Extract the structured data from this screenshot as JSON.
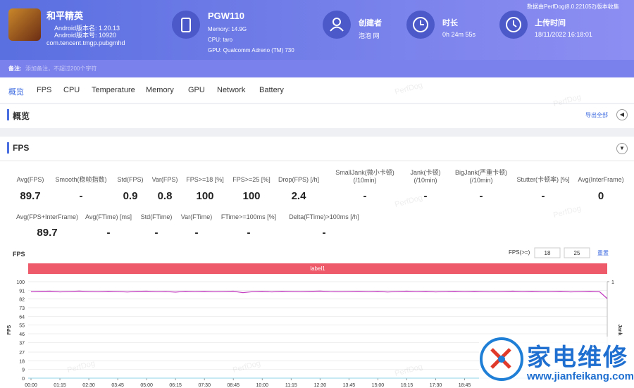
{
  "header": {
    "app_name": "和平精英",
    "android_version": "Android版本名: 1.20.13",
    "android_code": "Android版本号: 10920",
    "package": "com.tencent.tmgp.pubgmhd",
    "device": "PGW110",
    "memory": "Memory: 14.9G",
    "cpu": "CPU: taro",
    "gpu": "GPU: Qualcomm Adreno (TM) 730",
    "creator_label": "创建者",
    "creator": "泡泡 网",
    "duration_label": "时长",
    "duration": "0h 24m 55s",
    "upload_label": "上传时间",
    "upload_time": "18/11/2022 16:18:01",
    "source": "数据由PerfDog(8.0.221052)版本收集"
  },
  "note": {
    "label": "备注:",
    "placeholder": "添加备注，不超过200个字符"
  },
  "tabs": [
    "概览",
    "FPS",
    "CPU",
    "Temperature",
    "Memory",
    "GPU",
    "Network",
    "Battery"
  ],
  "overview": {
    "title": "概览",
    "export": "导出全部"
  },
  "fps_section": {
    "title": "FPS",
    "stats_row1": [
      {
        "label": "Avg(FPS)",
        "value": 89.7
      },
      {
        "label": "Smooth(稳帧指数)",
        "value": "-"
      },
      {
        "label": "Std(FPS)",
        "value": 0.9
      },
      {
        "label": "Var(FPS)",
        "value": 0.8
      },
      {
        "label": "FPS>=18 [%]",
        "value": 100
      },
      {
        "label": "FPS>=25 [%]",
        "value": 100
      },
      {
        "label": "Drop(FPS) [/h]",
        "value": 2.4
      },
      {
        "label": "SmallJank(微小卡顿)",
        "label2": "(/10min)",
        "value": "-"
      },
      {
        "label": "Jank(卡顿)",
        "label2": "(/10min)",
        "value": "-"
      },
      {
        "label": "BigJank(严重卡顿)",
        "label2": "(/10min)",
        "value": "-"
      },
      {
        "label": "Stutter(卡顿率) [%]",
        "value": "-"
      },
      {
        "label": "Avg(InterFrame)",
        "value": 0
      }
    ],
    "stats_row2": [
      {
        "label": "Avg(FPS+InterFrame)",
        "value": 89.7
      },
      {
        "label": "Avg(FTime) [ms]",
        "value": "-"
      },
      {
        "label": "Std(FTime)",
        "value": "-"
      },
      {
        "label": "Var(FTime)",
        "value": "-"
      },
      {
        "label": "FTime>=100ms [%]",
        "value": "-"
      },
      {
        "label": "Delta(FTime)>100ms [/h]",
        "value": "-"
      }
    ]
  },
  "chart_data": {
    "type": "line",
    "title": "FPS",
    "y_label": "FPS",
    "y2_label": "Jank",
    "threshold_label": "FPS(>=)",
    "thresholds": [
      18,
      25
    ],
    "reset": "重置",
    "band_label": "label1",
    "band_color": "#ee5a6a",
    "xlim": [
      0,
      1495
    ],
    "xticks": [
      {
        "value": 0,
        "label": "00:00"
      },
      {
        "value": 75,
        "label": "01:15"
      },
      {
        "value": 150,
        "label": "02:30"
      },
      {
        "value": 225,
        "label": "03:45"
      },
      {
        "value": 300,
        "label": "05:00"
      },
      {
        "value": 375,
        "label": "06:15"
      },
      {
        "value": 450,
        "label": "07:30"
      },
      {
        "value": 525,
        "label": "08:45"
      },
      {
        "value": 600,
        "label": "10:00"
      },
      {
        "value": 675,
        "label": "11:15"
      },
      {
        "value": 750,
        "label": "12:30"
      },
      {
        "value": 825,
        "label": "13:45"
      },
      {
        "value": 900,
        "label": "15:00"
      },
      {
        "value": 975,
        "label": "16:15"
      },
      {
        "value": 1050,
        "label": "17:30"
      },
      {
        "value": 1125,
        "label": "18:45"
      }
    ],
    "ylim": [
      0,
      100
    ],
    "yticks": [
      0,
      9,
      18,
      27,
      37,
      46,
      55,
      64,
      73,
      82,
      91,
      100
    ],
    "y2lim": [
      0,
      1
    ],
    "y2ticks": [
      1
    ],
    "grid": true,
    "x": [
      0,
      25,
      50,
      75,
      100,
      125,
      150,
      175,
      200,
      225,
      250,
      275,
      300,
      325,
      350,
      375,
      400,
      425,
      450,
      475,
      500,
      525,
      550,
      575,
      600,
      625,
      650,
      675,
      700,
      725,
      750,
      775,
      800,
      825,
      850,
      875,
      900,
      925,
      950,
      975,
      1000,
      1025,
      1050,
      1075,
      1100,
      1125,
      1150,
      1175,
      1200,
      1225,
      1250,
      1275,
      1300,
      1325,
      1350,
      1375,
      1400,
      1425,
      1450,
      1475,
      1495
    ],
    "series": [
      {
        "color": "#c23fc0",
        "values": [
          89.6,
          89.9,
          90.1,
          89.4,
          89.8,
          90.2,
          89.7,
          89.5,
          90.0,
          89.8,
          89.3,
          89.9,
          90.1,
          89.6,
          89.8,
          89.2,
          90.0,
          89.7,
          89.9,
          89.5,
          89.8,
          90.1,
          88.6,
          89.7,
          89.9,
          89.4,
          90.0,
          89.8,
          89.6,
          89.9,
          90.2,
          89.7,
          89.5,
          89.8,
          90.0,
          89.6,
          89.9,
          89.3,
          89.8,
          90.1,
          89.7,
          89.9,
          89.4,
          89.8,
          90.0,
          89.6,
          89.9,
          89.7,
          89.5,
          89.8,
          90.1,
          89.7,
          89.9,
          89.6,
          89.8,
          90.0,
          89.4,
          89.7,
          89.9,
          89.6,
          82.5
        ]
      }
    ]
  },
  "watermark": {
    "brand": "PerfDog",
    "title": "家电维修",
    "url": "www.jianfeikang.com"
  }
}
